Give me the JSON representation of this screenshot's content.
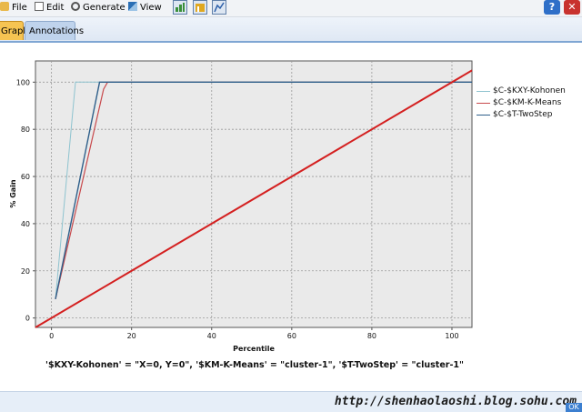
{
  "menu": {
    "file": "File",
    "edit": "Edit",
    "generate": "Generate",
    "view": "View"
  },
  "tabs": [
    {
      "label": "Graph",
      "active": true
    },
    {
      "label": "Annotations",
      "active": false
    }
  ],
  "window_buttons": {
    "help": "?",
    "close": "✕"
  },
  "colors": {
    "kohonen": "#8ec3cf",
    "kmeans": "#c8494c",
    "twostep": "#2e5f8a",
    "baseline": "#d42020",
    "plot_bg": "#eaeaea"
  },
  "chart_data": {
    "type": "line",
    "xlabel": "Percentile",
    "ylabel": "% Gain",
    "xlim": [
      -4,
      105
    ],
    "ylim": [
      -4,
      109
    ],
    "x_ticks": [
      0,
      20,
      40,
      60,
      80,
      100
    ],
    "y_ticks": [
      0,
      20,
      40,
      60,
      80,
      100
    ],
    "grid": true,
    "legend_position": "right",
    "series": [
      {
        "name": "$C-$KXY-Kohonen",
        "x": [
          1,
          6,
          105
        ],
        "y": [
          8,
          100,
          100
        ]
      },
      {
        "name": "$C-$KM-K-Means",
        "x": [
          1,
          13,
          14,
          105
        ],
        "y": [
          8,
          97,
          100,
          100
        ]
      },
      {
        "name": "$C-$T-TwoStep",
        "x": [
          1,
          12,
          105
        ],
        "y": [
          8,
          100,
          100
        ]
      },
      {
        "name": "",
        "x": [
          -4,
          105
        ],
        "y": [
          -4,
          105
        ]
      }
    ]
  },
  "footer_expression": "'$KXY-Kohonen' = \"X=0, Y=0\", '$KM-K-Means' = \"cluster-1\", '$T-TwoStep' = \"cluster-1\"",
  "watermark": "http://shenhaolaoshi.blog.sohu.com",
  "status": {
    "ok": "OK"
  }
}
